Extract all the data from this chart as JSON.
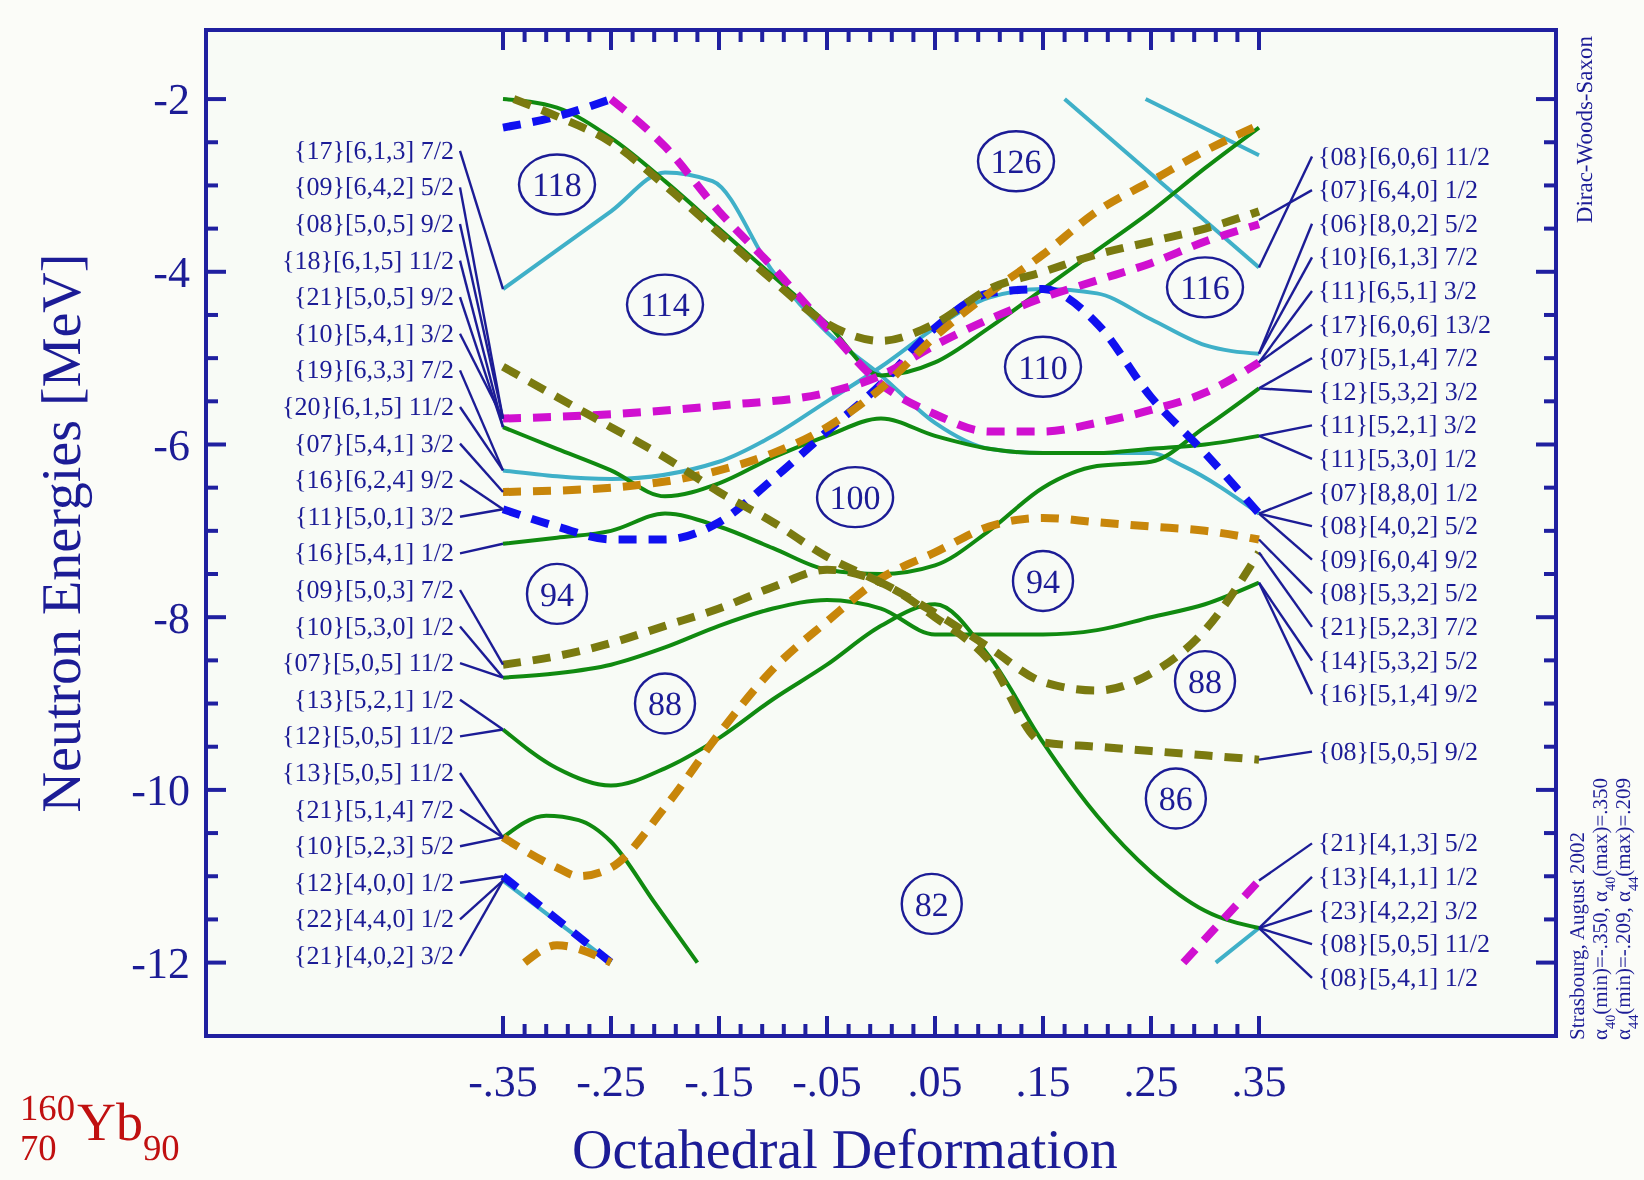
{
  "chart_data": {
    "type": "line",
    "title": "$^{160}$$_{70}$Yb$_{90}$",
    "xlabel": "Octahedral Deformation",
    "ylabel": "Neutron Energies [MeV]",
    "xlim": [
      -0.625,
      0.625
    ],
    "ylim": [
      -12.85,
      -1.2
    ],
    "xticks": [
      {
        "value": -0.35,
        "label": "-.35"
      },
      {
        "value": -0.33,
        "label": null
      },
      {
        "value": -0.31,
        "label": null
      },
      {
        "value": -0.29,
        "label": null
      },
      {
        "value": -0.27,
        "label": null
      },
      {
        "value": -0.25,
        "label": "-.25"
      },
      {
        "value": -0.23,
        "label": null
      },
      {
        "value": -0.21,
        "label": null
      },
      {
        "value": -0.19,
        "label": null
      },
      {
        "value": -0.17,
        "label": null
      },
      {
        "value": -0.15,
        "label": "-.15"
      },
      {
        "value": -0.13,
        "label": null
      },
      {
        "value": -0.11,
        "label": null
      },
      {
        "value": -0.09,
        "label": null
      },
      {
        "value": -0.07,
        "label": null
      },
      {
        "value": -0.05,
        "label": "-.05"
      },
      {
        "value": -0.03,
        "label": null
      },
      {
        "value": -0.01,
        "label": null
      },
      {
        "value": 0.01,
        "label": null
      },
      {
        "value": 0.03,
        "label": null
      },
      {
        "value": 0.05,
        "label": ".05"
      },
      {
        "value": 0.07,
        "label": null
      },
      {
        "value": 0.09,
        "label": null
      },
      {
        "value": 0.11,
        "label": null
      },
      {
        "value": 0.13,
        "label": null
      },
      {
        "value": 0.15,
        "label": ".15"
      },
      {
        "value": 0.17,
        "label": null
      },
      {
        "value": 0.19,
        "label": null
      },
      {
        "value": 0.21,
        "label": null
      },
      {
        "value": 0.23,
        "label": null
      },
      {
        "value": 0.25,
        "label": ".25"
      },
      {
        "value": 0.27,
        "label": null
      },
      {
        "value": 0.29,
        "label": null
      },
      {
        "value": 0.31,
        "label": null
      },
      {
        "value": 0.33,
        "label": null
      },
      {
        "value": 0.35,
        "label": ".35"
      }
    ],
    "yticks": [
      -12,
      {
        "value": -11.5,
        "label": null
      },
      -10,
      {
        "value": -10.5,
        "label": null
      },
      {
        "value": -11,
        "label": null
      },
      {
        "value": -9.5,
        "label": null
      },
      {
        "value": -9,
        "label": null
      },
      {
        "value": -8.5,
        "label": null
      },
      -8,
      {
        "value": -7.5,
        "label": null
      },
      {
        "value": -7,
        "label": null
      },
      {
        "value": -6.5,
        "label": null
      },
      -6,
      {
        "value": -5.5,
        "label": null
      },
      {
        "value": -5,
        "label": null
      },
      {
        "value": -4.5,
        "label": null
      },
      -4,
      {
        "value": -3.5,
        "label": null
      },
      {
        "value": -3,
        "label": null
      },
      {
        "value": -2.5,
        "label": null
      },
      -2
    ],
    "series": [
      {
        "color": "#3fb0c8",
        "line_style": "solid",
        "x": [
          -0.35,
          -0.25,
          -0.2,
          -0.156,
          -0.1,
          -0.05,
          0,
          0.05,
          0.1,
          0.15,
          0.2,
          0.25,
          0.28,
          0.35
        ],
        "values": [
          -4.2,
          -3.3,
          -2.85,
          -2.95,
          -4.0,
          -4.7,
          -5.2,
          -5.75,
          -6.05,
          -6.1,
          -6.1,
          -6.1,
          -6.25,
          -6.8
        ]
      },
      {
        "color": "#3fb0c8",
        "line_style": "solid",
        "x": [
          -0.35,
          -0.25,
          -0.15,
          -0.1,
          -0.05,
          0,
          0.05,
          0.1,
          0.15,
          0.2,
          0.25,
          0.3,
          0.35
        ],
        "values": [
          -6.3,
          -6.4,
          -6.2,
          -5.9,
          -5.5,
          -5.1,
          -4.65,
          -4.3,
          -4.2,
          -4.25,
          -4.55,
          -4.85,
          -4.95
        ]
      },
      {
        "color": "#3fb0c8",
        "line_style": "solid",
        "x": [
          0.17,
          0.35
        ],
        "values": [
          -2.0,
          -3.95
        ]
      },
      {
        "color": "#3fb0c8",
        "line_style": "solid",
        "x": [
          0.245,
          0.35
        ],
        "values": [
          -2.0,
          -2.65
        ]
      },
      {
        "color": "#3fb0c8",
        "line_style": "solid",
        "x": [
          -0.35,
          -0.25
        ],
        "values": [
          -11.05,
          -12
        ]
      },
      {
        "color": "#3fb0c8",
        "line_style": "solid",
        "x": [
          0.31,
          0.35
        ],
        "values": [
          -12,
          -11.6
        ]
      },
      {
        "color": "#108a10",
        "line_style": "solid",
        "x": [
          -0.35,
          -0.3,
          -0.25,
          -0.2,
          -0.15,
          -0.1,
          -0.05,
          0,
          0.05,
          0.1,
          0.15,
          0.2,
          0.25,
          0.3,
          0.35
        ],
        "values": [
          -2.0,
          -2.1,
          -2.45,
          -2.95,
          -3.5,
          -4.05,
          -4.6,
          -5.2,
          -5.05,
          -4.65,
          -4.2,
          -3.75,
          -3.3,
          -2.8,
          -2.33
        ]
      },
      {
        "color": "#108a10",
        "line_style": "solid",
        "x": [
          -0.35,
          -0.3,
          -0.25,
          -0.2,
          -0.15,
          -0.1,
          -0.05,
          0,
          0.05,
          0.1,
          0.15,
          0.2,
          0.25,
          0.3,
          0.35
        ],
        "values": [
          -5.8,
          -6.05,
          -6.3,
          -6.6,
          -6.45,
          -6.15,
          -5.9,
          -5.7,
          -5.9,
          -6.05,
          -6.1,
          -6.1,
          -6.05,
          -6.0,
          -5.9
        ]
      },
      {
        "color": "#108a10",
        "line_style": "solid",
        "x": [
          -0.35,
          -0.3,
          -0.25,
          -0.2,
          -0.15,
          -0.1,
          -0.05,
          0,
          0.05,
          0.1,
          0.15,
          0.2,
          0.25,
          0.3,
          0.35
        ],
        "values": [
          -7.15,
          -7.08,
          -7.0,
          -6.8,
          -6.95,
          -7.2,
          -7.45,
          -7.5,
          -7.4,
          -7.0,
          -6.5,
          -6.25,
          -6.2,
          -5.8,
          -5.35
        ]
      },
      {
        "color": "#108a10",
        "line_style": "solid",
        "x": [
          -0.35,
          -0.3,
          -0.25,
          -0.2,
          -0.15,
          -0.1,
          -0.05,
          0,
          0.05,
          0.1,
          0.15,
          0.2,
          0.25,
          0.3,
          0.35
        ],
        "values": [
          -8.7,
          -8.65,
          -8.55,
          -8.35,
          -8.1,
          -7.9,
          -7.8,
          -7.9,
          -8.2,
          -8.2,
          -8.2,
          -8.15,
          -8.0,
          -7.85,
          -7.6
        ]
      },
      {
        "color": "#108a10",
        "line_style": "solid",
        "x": [
          -0.35,
          -0.3,
          -0.25,
          -0.2,
          -0.15,
          -0.1,
          -0.05,
          0,
          0.05,
          0.1,
          0.15,
          0.2,
          0.25,
          0.3,
          0.35
        ],
        "values": [
          -9.3,
          -9.75,
          -9.95,
          -9.75,
          -9.4,
          -8.95,
          -8.55,
          -8.1,
          -7.85,
          -8.45,
          -9.45,
          -10.3,
          -10.95,
          -11.4,
          -11.6
        ]
      },
      {
        "color": "#108a10",
        "line_style": "solid",
        "x": [
          -0.35,
          -0.31,
          -0.28,
          -0.25,
          -0.21,
          -0.17
        ],
        "values": [
          -10.55,
          -10.3,
          -10.35,
          -10.6,
          -11.3,
          -12
        ]
      },
      {
        "color": "#1010f0",
        "line_style": "dashed",
        "x": [
          -0.35,
          -0.3,
          -0.25
        ],
        "values": [
          -2.33,
          -2.2,
          -2.0
        ]
      },
      {
        "color": "#1010f0",
        "line_style": "dashed",
        "x": [
          -0.35,
          -0.3,
          -0.25,
          -0.2,
          -0.15,
          -0.1,
          -0.05,
          0,
          0.05,
          0.1,
          0.15,
          0.2,
          0.25,
          0.3,
          0.35
        ],
        "values": [
          -6.75,
          -6.95,
          -7.1,
          -7.1,
          -6.9,
          -6.4,
          -5.85,
          -5.3,
          -4.65,
          -4.25,
          -4.2,
          -4.6,
          -5.45,
          -6.1,
          -6.8
        ]
      },
      {
        "color": "#1010f0",
        "line_style": "dashed",
        "x": [
          -0.35,
          -0.25
        ],
        "values": [
          -11.0,
          -12
        ]
      },
      {
        "color": "#d010d0",
        "line_style": "dashed",
        "x": [
          -0.25,
          -0.2,
          -0.15,
          -0.1,
          -0.05,
          0,
          0.05,
          0.1,
          0.15,
          0.2,
          0.25,
          0.3,
          0.35
        ],
        "values": [
          -2.0,
          -2.55,
          -3.3,
          -3.95,
          -4.65,
          -5.3,
          -5.65,
          -5.85,
          -5.85,
          -5.75,
          -5.6,
          -5.4,
          -5.05
        ]
      },
      {
        "color": "#d010d0",
        "line_style": "dashed",
        "x": [
          -0.35,
          -0.25,
          -0.15,
          -0.05,
          0,
          0.05,
          0.1,
          0.15,
          0.2,
          0.25,
          0.3,
          0.35
        ],
        "values": [
          -5.7,
          -5.65,
          -5.55,
          -5.4,
          -5.2,
          -4.85,
          -4.55,
          -4.3,
          -4.1,
          -3.9,
          -3.65,
          -3.45
        ]
      },
      {
        "color": "#d010d0",
        "line_style": "dashed",
        "x": [
          0.28,
          0.35
        ],
        "values": [
          -12,
          -11.05
        ]
      },
      {
        "color": "#c8860a",
        "line_style": "dashed",
        "x": [
          -0.35,
          -0.25,
          -0.15,
          -0.1,
          -0.05,
          0,
          0.05,
          0.1,
          0.15,
          0.2,
          0.25,
          0.3,
          0.35
        ],
        "values": [
          -6.55,
          -6.5,
          -6.3,
          -6.1,
          -5.8,
          -5.35,
          -4.75,
          -4.25,
          -3.8,
          -3.3,
          -2.95,
          -2.6,
          -2.3
        ]
      },
      {
        "color": "#c8860a",
        "line_style": "dashed",
        "x": [
          -0.35,
          -0.3,
          -0.28,
          -0.25,
          -0.2,
          -0.15,
          -0.1,
          -0.05,
          0,
          0.05,
          0.1,
          0.15,
          0.2,
          0.25,
          0.3,
          0.35
        ],
        "values": [
          -10.55,
          -10.9,
          -11.0,
          -10.9,
          -10.2,
          -9.35,
          -8.6,
          -8.05,
          -7.55,
          -7.25,
          -6.95,
          -6.85,
          -6.9,
          -6.95,
          -7.0,
          -7.1
        ]
      },
      {
        "color": "#c8860a",
        "line_style": "dashed",
        "x": [
          -0.33,
          -0.3,
          -0.25
        ],
        "values": [
          -12,
          -11.8,
          -12
        ]
      },
      {
        "color": "#7a7a10",
        "line_style": "dashed",
        "x": [
          -0.34,
          -0.3,
          -0.25,
          -0.2,
          -0.15,
          -0.1,
          -0.05,
          0,
          0.05,
          0.1,
          0.15,
          0.2,
          0.25,
          0.3,
          0.35
        ],
        "values": [
          -2.0,
          -2.2,
          -2.5,
          -3.0,
          -3.55,
          -4.1,
          -4.6,
          -4.8,
          -4.6,
          -4.2,
          -4.0,
          -3.8,
          -3.65,
          -3.5,
          -3.3
        ]
      },
      {
        "color": "#7a7a10",
        "line_style": "dashed",
        "x": [
          -0.35,
          -0.3,
          -0.25,
          -0.2,
          -0.15,
          -0.1,
          -0.05,
          0,
          0.05,
          0.1,
          0.15,
          0.2,
          0.25,
          0.3,
          0.35
        ],
        "values": [
          -5.1,
          -5.45,
          -5.8,
          -6.15,
          -6.55,
          -6.9,
          -7.3,
          -7.6,
          -7.95,
          -8.35,
          -8.75,
          -8.85,
          -8.65,
          -8.15,
          -7.25
        ]
      },
      {
        "color": "#7a7a10",
        "line_style": "dashed",
        "x": [
          -0.35,
          -0.3,
          -0.25,
          -0.2,
          -0.15,
          -0.1,
          -0.05,
          0,
          0.05,
          0.1,
          0.15,
          0.2,
          0.25,
          0.3,
          0.35
        ],
        "values": [
          -8.55,
          -8.45,
          -8.3,
          -8.1,
          -7.9,
          -7.65,
          -7.45,
          -7.6,
          -8.0,
          -8.5,
          -9.45,
          -9.5,
          -9.55,
          -9.6,
          -9.65
        ]
      }
    ],
    "annotations": [
      "Dirac-Woods-Saxon",
      "Strasbourg, August 2002",
      "α$_{40}$(min)=-.350, α$_{40}$(max)=.350",
      "α$_{44}$(min)=-.209, α$_{44}$(max)=.209",
      {
        "text": "118",
        "x": -0.3,
        "y": -2.99
      },
      {
        "text": "114",
        "x": -0.2,
        "y": -4.38
      },
      {
        "text": "126",
        "x": 0.125,
        "y": -2.72
      },
      {
        "text": "116",
        "x": 0.3,
        "y": -4.18
      },
      {
        "text": "110",
        "x": 0.15,
        "y": -5.1
      },
      {
        "text": "100",
        "x": -0.024,
        "y": -6.61
      },
      {
        "text": "94",
        "x": -0.3,
        "y": -7.73
      },
      {
        "text": "94",
        "x": 0.15,
        "y": -7.58
      },
      {
        "text": "88",
        "x": -0.2,
        "y": -9.0
      },
      {
        "text": "88",
        "x": 0.3,
        "y": -8.74
      },
      {
        "text": "86",
        "x": 0.273,
        "y": -10.1
      },
      {
        "text": "82",
        "x": 0.047,
        "y": -11.32
      },
      {
        "text": "{17}[6,1,3] 7/2",
        "x": -0.35,
        "y": -4.2
      },
      {
        "text": "{09}[6,4,2] 5/2",
        "x": -0.35,
        "y": -5.7
      },
      {
        "text": "{08}[5,0,5] 9/2",
        "x": -0.35,
        "y": -5.7
      },
      {
        "text": "{18}[6,1,5] 11/2",
        "x": -0.35,
        "y": -5.8
      },
      {
        "text": "{21}[5,0,5] 9/2",
        "x": -0.35,
        "y": -5.8
      },
      {
        "text": "{10}[5,4,1] 3/2",
        "x": -0.35,
        "y": -5.7
      },
      {
        "text": "{19}[6,3,3] 7/2",
        "x": -0.35,
        "y": -6.3
      },
      {
        "text": "{20}[6,1,5] 11/2",
        "x": -0.35,
        "y": -6.3
      },
      {
        "text": "{07}[5,4,1] 3/2",
        "x": -0.35,
        "y": -6.55
      },
      {
        "text": "{16}[6,2,4] 9/2",
        "x": -0.35,
        "y": -6.75
      },
      {
        "text": "{11}[5,0,1] 3/2",
        "x": -0.35,
        "y": -6.75
      },
      {
        "text": "{16}[5,4,1] 1/2",
        "x": -0.35,
        "y": -7.15
      },
      {
        "text": "{09}[5,0,3] 7/2",
        "x": -0.35,
        "y": -8.55
      },
      {
        "text": "{10}[5,3,0] 1/2",
        "x": -0.35,
        "y": -8.7
      },
      {
        "text": "{07}[5,0,5] 11/2",
        "x": -0.35,
        "y": -8.7
      },
      {
        "text": "{13}[5,2,1] 1/2",
        "x": -0.35,
        "y": -9.3
      },
      {
        "text": "{12}[5,0,5] 11/2",
        "x": -0.35,
        "y": -9.3
      },
      {
        "text": "{13}[5,0,5] 11/2",
        "x": -0.35,
        "y": -10.55
      },
      {
        "text": "{21}[5,1,4] 7/2",
        "x": -0.35,
        "y": -10.55
      },
      {
        "text": "{10}[5,2,3] 5/2",
        "x": -0.35,
        "y": -10.55
      },
      {
        "text": "{12}[4,0,0] 1/2",
        "x": -0.35,
        "y": -11.0
      },
      {
        "text": "{22}[4,4,0] 1/2",
        "x": -0.35,
        "y": -11.05
      },
      {
        "text": "{21}[4,0,2] 3/2",
        "x": -0.35,
        "y": -11.05
      },
      {
        "text": "{08}[6,0,6] 11/2",
        "x": 0.35,
        "y": -3.95
      },
      {
        "text": "{07}[6,4,0] 1/2",
        "x": 0.35,
        "y": -3.4
      },
      {
        "text": "{06}[8,0,2] 5/2",
        "x": 0.35,
        "y": -4.95
      },
      {
        "text": "{10}[6,1,3] 7/2",
        "x": 0.35,
        "y": -4.95
      },
      {
        "text": "{11}[6,5,1] 3/2",
        "x": 0.35,
        "y": -5.05
      },
      {
        "text": "{17}[6,0,6] 13/2",
        "x": 0.35,
        "y": -5.05
      },
      {
        "text": "{07}[5,1,4] 7/2",
        "x": 0.35,
        "y": -5.35
      },
      {
        "text": "{12}[5,3,2] 3/2",
        "x": 0.35,
        "y": -5.35
      },
      {
        "text": "{11}[5,2,1] 3/2",
        "x": 0.35,
        "y": -5.9
      },
      {
        "text": "{11}[5,3,0] 1/2",
        "x": 0.35,
        "y": -5.9
      },
      {
        "text": "{07}[8,8,0] 1/2",
        "x": 0.35,
        "y": -6.8
      },
      {
        "text": "{08}[4,0,2] 5/2",
        "x": 0.35,
        "y": -6.8
      },
      {
        "text": "{09}[6,0,4] 9/2",
        "x": 0.35,
        "y": -6.8
      },
      {
        "text": "{08}[5,3,2] 5/2",
        "x": 0.35,
        "y": -7.1
      },
      {
        "text": "{21}[5,2,3] 7/2",
        "x": 0.35,
        "y": -7.25
      },
      {
        "text": "{14}[5,3,2] 5/2",
        "x": 0.35,
        "y": -7.6
      },
      {
        "text": "{16}[5,1,4] 9/2",
        "x": 0.35,
        "y": -7.6
      },
      {
        "text": "{08}[5,0,5] 9/2",
        "x": 0.35,
        "y": -9.65
      },
      {
        "text": "{21}[4,1,3] 5/2",
        "x": 0.35,
        "y": -11.05
      },
      {
        "text": "{13}[4,1,1] 1/2",
        "x": 0.35,
        "y": -11.6
      },
      {
        "text": "{23}[4,2,2] 3/2",
        "x": 0.35,
        "y": -11.6
      },
      {
        "text": "{08}[5,0,5] 11/2",
        "x": 0.35,
        "y": -11.6
      },
      {
        "text": "{08}[5,4,1] 1/2",
        "x": 0.35,
        "y": -11.6
      }
    ]
  }
}
